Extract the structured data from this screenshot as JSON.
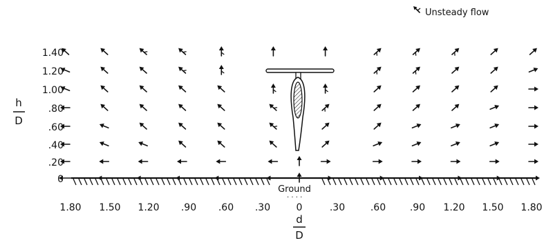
{
  "legend": {
    "label": "Unsteady flow"
  },
  "y_label": {
    "top": "h",
    "bottom": "D"
  },
  "x_label": {
    "top": "d",
    "bottom": "D"
  },
  "ground_label": "Ground",
  "y_ticks": [
    "1.40",
    "1.20",
    "1.00",
    ".80",
    ".60",
    ".40",
    ".20",
    "0"
  ],
  "x_ticks": [
    "1.80",
    "1.50",
    "1.20",
    ".90",
    ".60",
    ".30",
    "0",
    ".30",
    ".60",
    ".90",
    "1.20",
    "1.50",
    "1.80"
  ],
  "flow_rows": [
    {
      "h": "1.40",
      "vectors": [
        {
          "d": -1.8,
          "dir": "nw",
          "u": false
        },
        {
          "d": -1.5,
          "dir": "nw",
          "u": false
        },
        {
          "d": -1.2,
          "dir": "nw",
          "u": true
        },
        {
          "d": -0.9,
          "dir": "nw",
          "u": true
        },
        {
          "d": -0.6,
          "dir": "n",
          "u": true
        },
        {
          "d": -0.2,
          "dir": "n",
          "u": false
        },
        {
          "d": 0.2,
          "dir": "n",
          "u": false
        },
        {
          "d": 0.6,
          "dir": "ne",
          "u": true
        },
        {
          "d": 0.9,
          "dir": "ne",
          "u": true
        },
        {
          "d": 1.2,
          "dir": "ne",
          "u": true
        },
        {
          "d": 1.5,
          "dir": "ne",
          "u": false
        },
        {
          "d": 1.8,
          "dir": "ne",
          "u": false
        }
      ]
    },
    {
      "h": "1.20",
      "vectors": [
        {
          "d": -1.8,
          "dir": "wnw",
          "u": false
        },
        {
          "d": -1.5,
          "dir": "nw",
          "u": false
        },
        {
          "d": -1.2,
          "dir": "nw",
          "u": false
        },
        {
          "d": -0.9,
          "dir": "nw",
          "u": true
        },
        {
          "d": -0.6,
          "dir": "n",
          "u": true
        },
        {
          "d": 0.6,
          "dir": "ne",
          "u": true
        },
        {
          "d": 0.9,
          "dir": "ne",
          "u": true
        },
        {
          "d": 1.2,
          "dir": "ne",
          "u": false
        },
        {
          "d": 1.5,
          "dir": "ne",
          "u": false
        },
        {
          "d": 1.8,
          "dir": "ene",
          "u": false
        }
      ]
    },
    {
      "h": "1.00",
      "vectors": [
        {
          "d": -1.8,
          "dir": "wnw",
          "u": false
        },
        {
          "d": -1.5,
          "dir": "nw",
          "u": false
        },
        {
          "d": -1.2,
          "dir": "nw",
          "u": false
        },
        {
          "d": -0.9,
          "dir": "nw",
          "u": false
        },
        {
          "d": -0.6,
          "dir": "nw",
          "u": false
        },
        {
          "d": -0.2,
          "dir": "n",
          "u": true
        },
        {
          "d": 0.2,
          "dir": "n",
          "u": true
        },
        {
          "d": 0.6,
          "dir": "ne",
          "u": false
        },
        {
          "d": 0.9,
          "dir": "ne",
          "u": false
        },
        {
          "d": 1.2,
          "dir": "ne",
          "u": false
        },
        {
          "d": 1.5,
          "dir": "ne",
          "u": false
        },
        {
          "d": 1.8,
          "dir": "e",
          "u": false
        }
      ]
    },
    {
      "h": ".80",
      "vectors": [
        {
          "d": -1.8,
          "dir": "w",
          "u": false
        },
        {
          "d": -1.5,
          "dir": "nw",
          "u": false
        },
        {
          "d": -1.2,
          "dir": "nw",
          "u": false
        },
        {
          "d": -0.9,
          "dir": "nw",
          "u": false
        },
        {
          "d": -0.6,
          "dir": "nw",
          "u": false
        },
        {
          "d": -0.2,
          "dir": "nw",
          "u": true
        },
        {
          "d": 0.2,
          "dir": "ne",
          "u": true
        },
        {
          "d": 0.6,
          "dir": "ne",
          "u": false
        },
        {
          "d": 0.9,
          "dir": "ne",
          "u": false
        },
        {
          "d": 1.2,
          "dir": "ne",
          "u": false
        },
        {
          "d": 1.5,
          "dir": "ene",
          "u": false
        },
        {
          "d": 1.8,
          "dir": "e",
          "u": false
        }
      ]
    },
    {
      "h": ".60",
      "vectors": [
        {
          "d": -1.8,
          "dir": "w",
          "u": false
        },
        {
          "d": -1.5,
          "dir": "wnw",
          "u": false
        },
        {
          "d": -1.2,
          "dir": "nw",
          "u": false
        },
        {
          "d": -0.9,
          "dir": "nw",
          "u": false
        },
        {
          "d": -0.6,
          "dir": "nw",
          "u": false
        },
        {
          "d": -0.2,
          "dir": "nw",
          "u": true
        },
        {
          "d": 0.2,
          "dir": "ne",
          "u": false
        },
        {
          "d": 0.6,
          "dir": "ne",
          "u": false
        },
        {
          "d": 0.9,
          "dir": "ene",
          "u": false
        },
        {
          "d": 1.2,
          "dir": "ene",
          "u": false
        },
        {
          "d": 1.5,
          "dir": "ene",
          "u": false
        },
        {
          "d": 1.8,
          "dir": "e",
          "u": false
        }
      ]
    },
    {
      "h": ".40",
      "vectors": [
        {
          "d": -1.8,
          "dir": "w",
          "u": false
        },
        {
          "d": -1.5,
          "dir": "wnw",
          "u": false
        },
        {
          "d": -1.2,
          "dir": "wnw",
          "u": false
        },
        {
          "d": -0.9,
          "dir": "nw",
          "u": false
        },
        {
          "d": -0.6,
          "dir": "nw",
          "u": false
        },
        {
          "d": -0.2,
          "dir": "nw",
          "u": false
        },
        {
          "d": 0.2,
          "dir": "ne",
          "u": false
        },
        {
          "d": 0.6,
          "dir": "ene",
          "u": false
        },
        {
          "d": 0.9,
          "dir": "ene",
          "u": false
        },
        {
          "d": 1.2,
          "dir": "ene",
          "u": false
        },
        {
          "d": 1.5,
          "dir": "ene",
          "u": false
        },
        {
          "d": 1.8,
          "dir": "e",
          "u": false
        }
      ]
    },
    {
      "h": ".20",
      "vectors": [
        {
          "d": -1.8,
          "dir": "w",
          "u": false
        },
        {
          "d": -1.5,
          "dir": "w",
          "u": false
        },
        {
          "d": -1.2,
          "dir": "w",
          "u": false
        },
        {
          "d": -0.9,
          "dir": "w",
          "u": false
        },
        {
          "d": -0.6,
          "dir": "w",
          "u": false
        },
        {
          "d": -0.2,
          "dir": "w",
          "u": false
        },
        {
          "d": 0.0,
          "dir": "n",
          "u": false
        },
        {
          "d": 0.2,
          "dir": "e",
          "u": false
        },
        {
          "d": 0.6,
          "dir": "e",
          "u": false
        },
        {
          "d": 0.9,
          "dir": "e",
          "u": false
        },
        {
          "d": 1.2,
          "dir": "e",
          "u": false
        },
        {
          "d": 1.5,
          "dir": "e",
          "u": false
        },
        {
          "d": 1.8,
          "dir": "e",
          "u": false
        }
      ]
    },
    {
      "h": "0",
      "vectors": [
        {
          "d": -1.8,
          "dir": "w",
          "u": false
        },
        {
          "d": -1.5,
          "dir": "w",
          "u": false
        },
        {
          "d": -1.2,
          "dir": "w",
          "u": false
        },
        {
          "d": -0.9,
          "dir": "w",
          "u": false
        },
        {
          "d": -0.6,
          "dir": "w",
          "u": false
        },
        {
          "d": -0.2,
          "dir": "w",
          "u": false
        },
        {
          "d": 0.0,
          "dir": "n",
          "u": false
        },
        {
          "d": 0.2,
          "dir": "e",
          "u": false
        },
        {
          "d": 0.6,
          "dir": "e",
          "u": false
        },
        {
          "d": 0.9,
          "dir": "e",
          "u": false
        },
        {
          "d": 1.2,
          "dir": "e",
          "u": false
        },
        {
          "d": 1.5,
          "dir": "e",
          "u": false
        },
        {
          "d": 1.8,
          "dir": "e",
          "u": false
        }
      ]
    }
  ]
}
